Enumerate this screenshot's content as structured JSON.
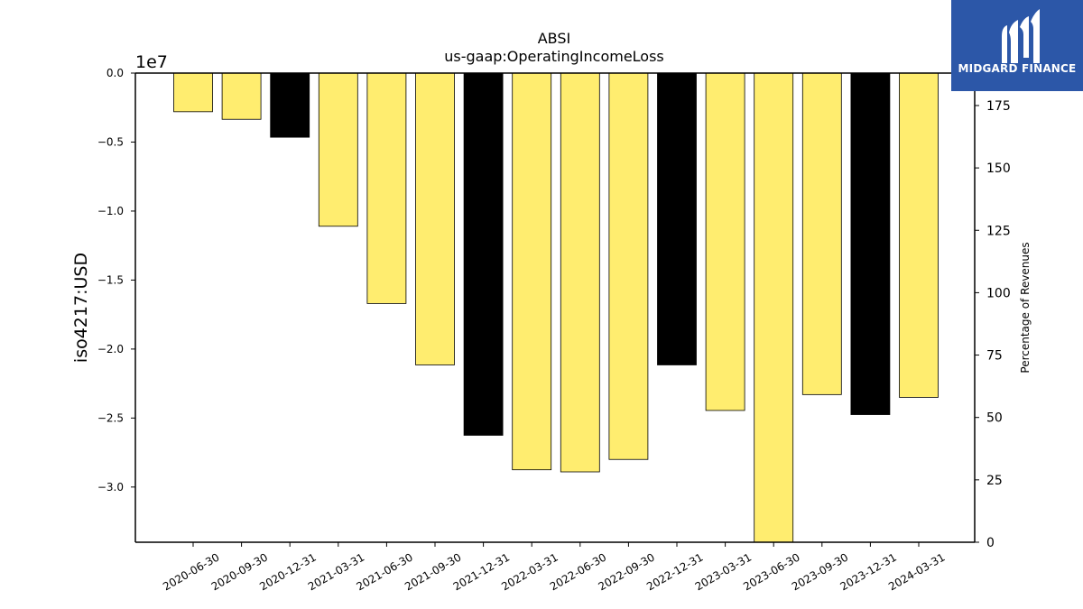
{
  "chart_data": {
    "type": "bar",
    "title": "ABSI",
    "subtitle": "us-gaap:OperatingIncomeLoss",
    "ylabel": "iso4217:USD",
    "y_offset_label": "1e7",
    "y2label": "Percentage of Revenues",
    "categories": [
      "2020-06-30",
      "2020-09-30",
      "2020-12-31",
      "2021-03-31",
      "2021-06-30",
      "2021-09-30",
      "2021-12-31",
      "2022-03-31",
      "2022-06-30",
      "2022-09-30",
      "2022-12-31",
      "2023-03-31",
      "2023-06-30",
      "2023-09-30",
      "2023-12-31",
      "2024-03-31"
    ],
    "values": [
      -2800000,
      -3350000,
      -4650000,
      -11100000,
      -16700000,
      -21150000,
      -26250000,
      -28750000,
      -28900000,
      -28000000,
      -21150000,
      -24450000,
      -34000000,
      -23300000,
      -24750000,
      -23500000
    ],
    "bar_colors": [
      "#ffed6f",
      "#ffed6f",
      "#000000",
      "#ffed6f",
      "#ffed6f",
      "#ffed6f",
      "#000000",
      "#ffed6f",
      "#ffed6f",
      "#ffed6f",
      "#000000",
      "#ffed6f",
      "#ffed6f",
      "#ffed6f",
      "#000000",
      "#ffed6f"
    ],
    "ylim": [
      -34000000,
      0
    ],
    "yticks": [
      0,
      -5000000,
      -10000000,
      -15000000,
      -20000000,
      -25000000,
      -30000000
    ],
    "ytick_labels": [
      "0.0",
      "−0.5",
      "−1.0",
      "−1.5",
      "−2.0",
      "−2.5",
      "−3.0"
    ],
    "y2lim": [
      0,
      188
    ],
    "y2ticks": [
      0,
      25,
      50,
      75,
      100,
      125,
      150,
      175
    ],
    "y2tick_labels": [
      "0",
      "25",
      "50",
      "75",
      "100",
      "125",
      "150",
      "175"
    ],
    "grid": false,
    "legend": "none"
  },
  "logo": {
    "text": "MIDGARD FINANCE",
    "brand_color": "#2c57a8"
  }
}
